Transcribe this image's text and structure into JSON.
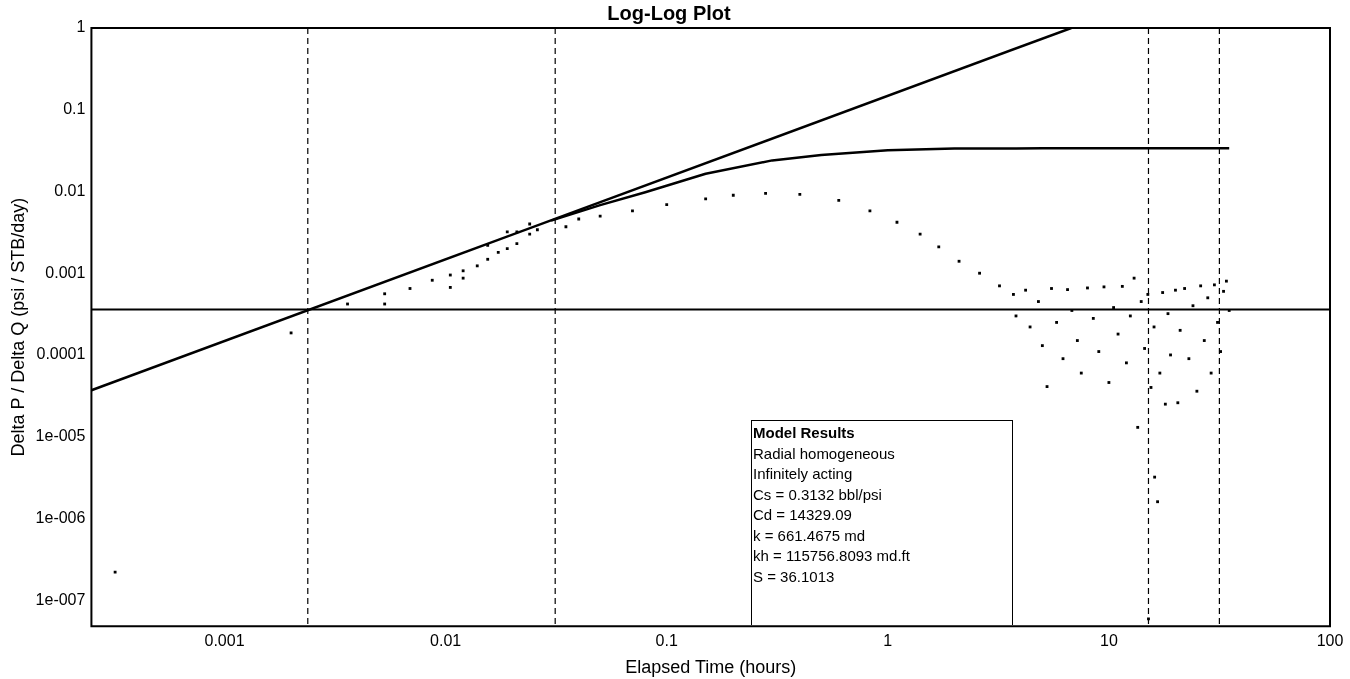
{
  "chart_data": {
    "type": "scatter",
    "title": "Log-Log Plot",
    "xlabel": "Elapsed Time (hours)",
    "ylabel": "Delta P / Delta Q (psi / STB/day)",
    "log": "xy",
    "grid": false,
    "legend": false,
    "xlim": [
      0.00025,
      100
    ],
    "ylim": [
      4.8e-08,
      1
    ],
    "xticks": [
      0.001,
      0.01,
      0.1,
      1,
      10,
      100
    ],
    "yticks": [
      {
        "value": 1e-07,
        "label": "1e-007"
      },
      {
        "value": 1e-06,
        "label": "1e-006"
      },
      {
        "value": 1e-05,
        "label": "1e-005"
      },
      0.0001,
      0.001,
      0.01,
      0.1,
      1
    ],
    "series": [
      {
        "type": "line",
        "color": "#000000",
        "line_style": "solid",
        "x": [
          0.00025,
          6.76
        ],
        "values": [
          3.7e-05,
          1
        ]
      },
      {
        "type": "line",
        "color": "#000000",
        "line_style": "solid",
        "x": [
          0.03,
          0.05,
          0.08,
          0.15,
          0.3,
          0.5,
          1,
          2,
          5,
          35
        ],
        "values": [
          0.0044,
          0.0068,
          0.0098,
          0.0165,
          0.024,
          0.028,
          0.032,
          0.0335,
          0.0337,
          0.0337
        ]
      },
      {
        "color": "#000000",
        "marker": "square",
        "x": [
          0.00032,
          0.002,
          0.0036,
          0.0053,
          0.0053,
          0.0069,
          0.0087,
          0.0105,
          0.0105,
          0.012,
          0.012,
          0.0139,
          0.0155,
          0.0155,
          0.0173,
          0.019,
          0.019,
          0.021,
          0.021,
          0.024,
          0.024,
          0.026,
          0.035,
          0.04,
          0.05,
          0.07,
          0.1,
          0.15,
          0.2,
          0.28,
          0.4,
          0.6,
          0.83,
          1.1,
          1.4,
          1.7,
          2.1,
          2.6,
          3.2,
          3.7,
          3.8,
          4.2,
          4.4,
          4.8,
          5.0,
          5.25,
          5.5,
          5.8,
          6.2,
          6.5,
          6.8,
          7.2,
          7.5,
          8,
          8.5,
          9,
          9.5,
          10,
          10.5,
          11,
          11.5,
          12,
          12.5,
          13,
          13.5,
          14,
          14.5,
          15,
          15.1,
          15.5,
          16,
          16.1,
          16.6,
          17,
          17.5,
          18,
          18.5,
          19,
          20,
          20.5,
          21,
          22,
          23,
          24,
          25,
          26,
          27,
          28,
          29,
          30,
          31,
          32,
          33,
          34,
          35
        ],
        "values": [
          2.2e-07,
          0.000186,
          0.00042,
          0.00056,
          0.00042,
          0.00065,
          0.00082,
          0.00095,
          0.00067,
          0.00107,
          0.00087,
          0.00123,
          0.0022,
          0.00148,
          0.0018,
          0.0032,
          0.002,
          0.0032,
          0.0023,
          0.004,
          0.003,
          0.0034,
          0.0037,
          0.0046,
          0.005,
          0.0058,
          0.0069,
          0.0081,
          0.009,
          0.0095,
          0.0092,
          0.0078,
          0.0058,
          0.0042,
          0.003,
          0.0021,
          0.0014,
          0.001,
          0.0007,
          0.00055,
          0.0003,
          0.00062,
          0.00022,
          0.00045,
          0.00013,
          4.1e-05,
          0.00065,
          0.00025,
          9e-05,
          0.00063,
          0.00035,
          0.00015,
          6e-05,
          0.00066,
          0.00028,
          0.00011,
          0.00068,
          4.6e-05,
          0.00038,
          0.00018,
          0.00069,
          8e-05,
          0.0003,
          0.00087,
          1.3e-05,
          0.00045,
          0.00012,
          0.00055,
          5.9e-08,
          4e-05,
          0.00022,
          3.2e-06,
          1.6e-06,
          6e-05,
          0.00058,
          2.5e-05,
          0.00032,
          0.0001,
          0.00062,
          2.6e-05,
          0.0002,
          0.00065,
          9e-05,
          0.0004,
          3.6e-05,
          0.0007,
          0.00015,
          0.0005,
          6e-05,
          0.00072,
          0.00025,
          0.00011,
          0.0006,
          0.0008,
          0.00035
        ]
      }
    ],
    "ref_lines": [
      {
        "axis": "x",
        "value": 0.00238,
        "line_style": "dashed",
        "color": "#000000"
      },
      {
        "axis": "x",
        "value": 0.0313,
        "line_style": "dashed",
        "color": "#000000"
      },
      {
        "axis": "x",
        "value": 15.1,
        "line_style": "dashed",
        "color": "#000000"
      },
      {
        "axis": "x",
        "value": 31.6,
        "line_style": "dashed",
        "color": "#000000"
      },
      {
        "axis": "y",
        "value": 0.00036,
        "line_style": "solid",
        "color": "#000000"
      }
    ],
    "annotations": [
      "Model Results",
      "Radial homogeneous",
      "Infinitely acting",
      "Cs = 0.3132 bbl/psi",
      "Cd = 14329.09",
      "k = 661.4675 md",
      "kh = 115756.8093 md.ft",
      "S = 36.1013"
    ]
  }
}
